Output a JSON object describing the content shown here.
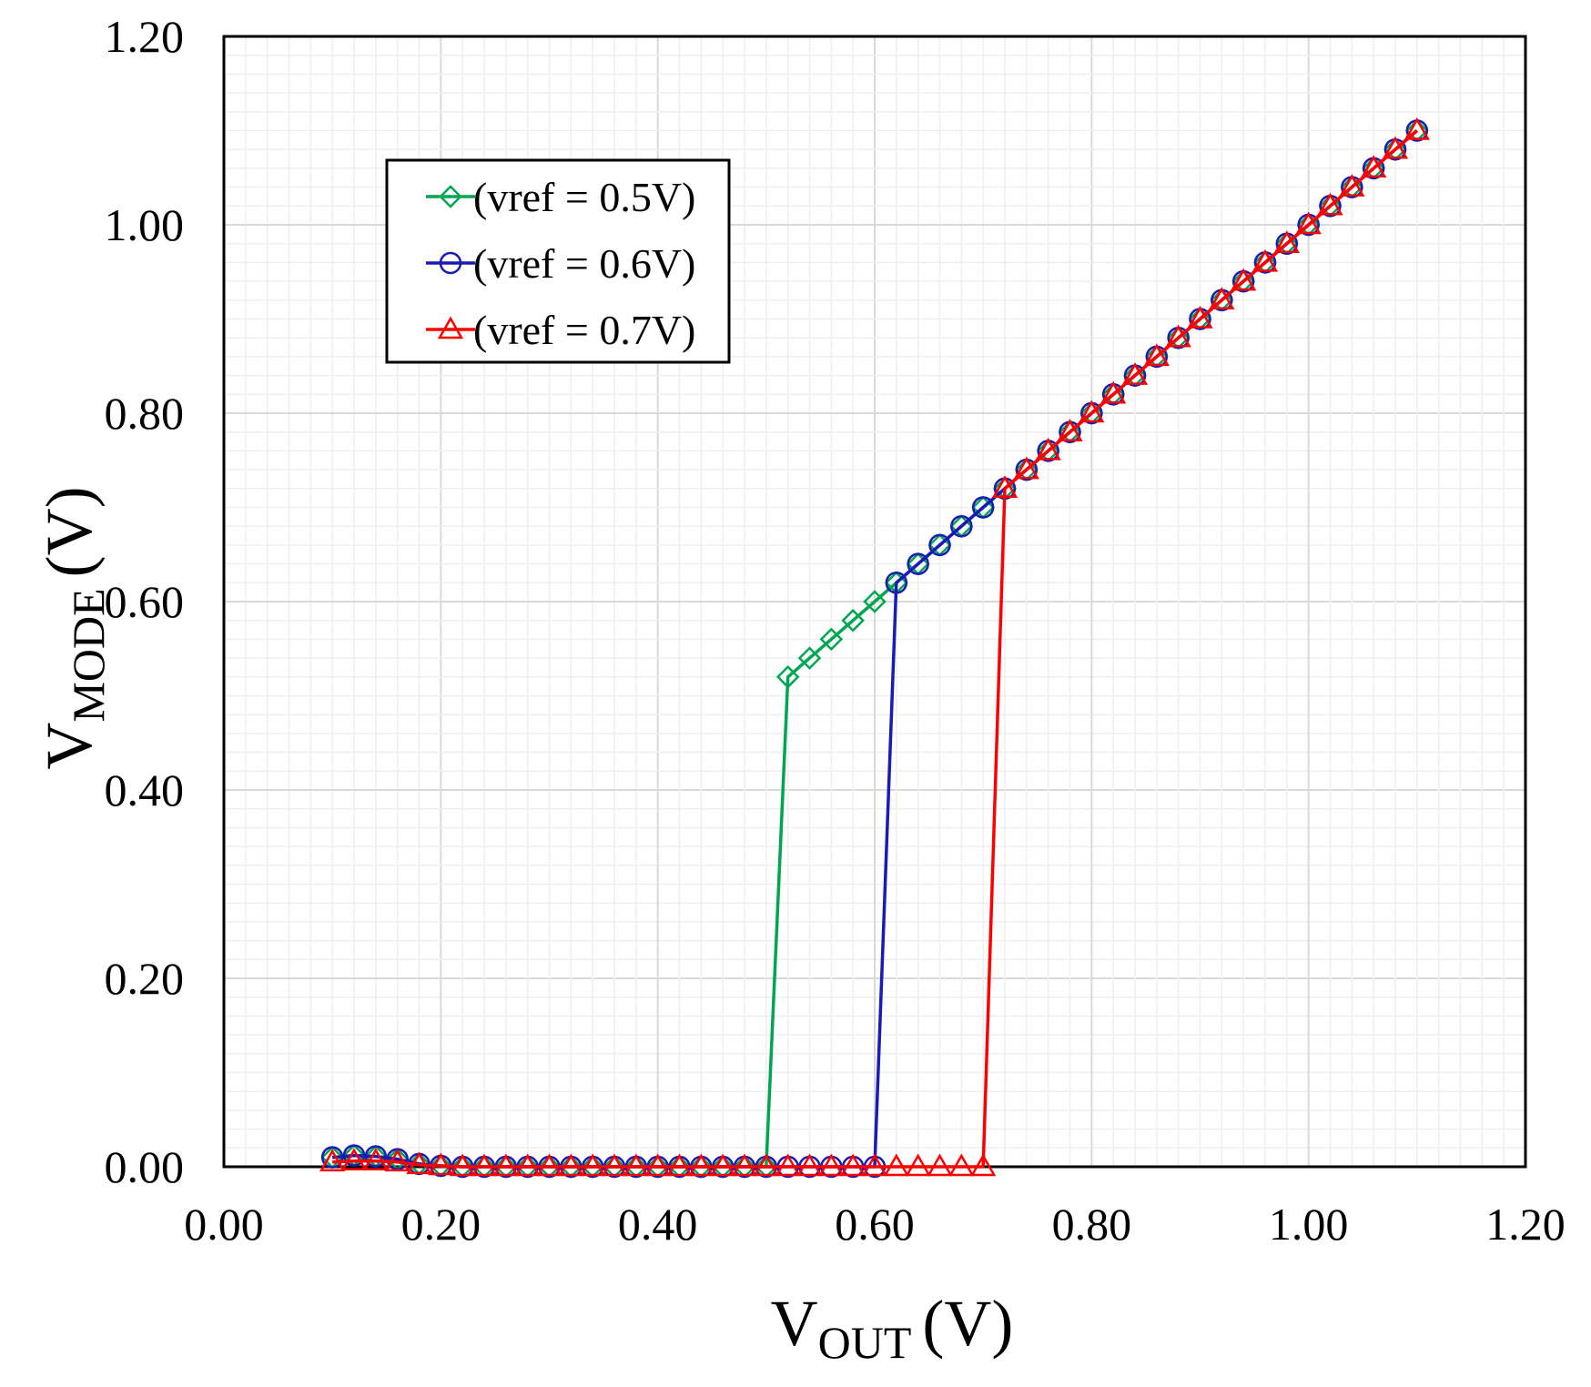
{
  "chart_data": {
    "type": "line",
    "title": "",
    "xlabel": {
      "main": "V",
      "subscript": "OUT",
      "unit": "(V)"
    },
    "ylabel": {
      "main": "V",
      "subscript": "MODE",
      "unit": "(V)"
    },
    "xlim": [
      0,
      1.2
    ],
    "ylim": [
      0,
      1.2
    ],
    "xticks": [
      "0.00",
      "0.20",
      "0.40",
      "0.60",
      "0.80",
      "1.00",
      "1.20"
    ],
    "yticks": [
      "0.00",
      "0.20",
      "0.40",
      "0.60",
      "0.80",
      "1.00",
      "1.20"
    ],
    "grid": true,
    "legend_position": "top-left",
    "series": [
      {
        "name": "(vref = 0.5V)",
        "color": "#00a651",
        "marker": "diamond",
        "x": [
          0.1,
          0.12,
          0.14,
          0.16,
          0.18,
          0.2,
          0.22,
          0.24,
          0.26,
          0.28,
          0.3,
          0.32,
          0.34,
          0.36,
          0.38,
          0.4,
          0.42,
          0.44,
          0.46,
          0.48,
          0.5,
          0.52,
          0.54,
          0.56,
          0.58,
          0.6,
          0.62,
          0.64,
          0.66,
          0.68,
          0.7,
          0.72,
          0.74,
          0.76,
          0.78,
          0.8,
          0.82,
          0.84,
          0.86,
          0.88,
          0.9,
          0.92,
          0.94,
          0.96,
          0.98,
          1.0,
          1.02,
          1.04,
          1.06,
          1.08,
          1.1
        ],
        "y": [
          0.01,
          0.012,
          0.011,
          0.008,
          0.003,
          0.001,
          0,
          0,
          0,
          0,
          0,
          0,
          0,
          0,
          0,
          0,
          0,
          0,
          0,
          0,
          0,
          0.52,
          0.54,
          0.56,
          0.58,
          0.6,
          0.62,
          0.64,
          0.66,
          0.68,
          0.7,
          0.72,
          0.74,
          0.76,
          0.78,
          0.8,
          0.82,
          0.84,
          0.86,
          0.88,
          0.9,
          0.92,
          0.94,
          0.96,
          0.98,
          1.0,
          1.02,
          1.04,
          1.06,
          1.08,
          1.1
        ]
      },
      {
        "name": "(vref = 0.6V)",
        "color": "#1a1ab4",
        "marker": "circle",
        "x": [
          0.1,
          0.12,
          0.14,
          0.16,
          0.18,
          0.2,
          0.22,
          0.24,
          0.26,
          0.28,
          0.3,
          0.32,
          0.34,
          0.36,
          0.38,
          0.4,
          0.42,
          0.44,
          0.46,
          0.48,
          0.5,
          0.52,
          0.54,
          0.56,
          0.58,
          0.6,
          0.62,
          0.64,
          0.66,
          0.68,
          0.7,
          0.72,
          0.74,
          0.76,
          0.78,
          0.8,
          0.82,
          0.84,
          0.86,
          0.88,
          0.9,
          0.92,
          0.94,
          0.96,
          0.98,
          1.0,
          1.02,
          1.04,
          1.06,
          1.08,
          1.1
        ],
        "y": [
          0.01,
          0.012,
          0.011,
          0.008,
          0.003,
          0.001,
          0,
          0,
          0,
          0,
          0,
          0,
          0,
          0,
          0,
          0,
          0,
          0,
          0,
          0,
          0,
          0,
          0,
          0,
          0,
          0,
          0.62,
          0.64,
          0.66,
          0.68,
          0.7,
          0.72,
          0.74,
          0.76,
          0.78,
          0.8,
          0.82,
          0.84,
          0.86,
          0.88,
          0.9,
          0.92,
          0.94,
          0.96,
          0.98,
          1.0,
          1.02,
          1.04,
          1.06,
          1.08,
          1.1
        ]
      },
      {
        "name": "(vref = 0.7V)",
        "color": "#ff0000",
        "marker": "triangle",
        "x": [
          0.1,
          0.12,
          0.14,
          0.16,
          0.18,
          0.2,
          0.22,
          0.24,
          0.26,
          0.28,
          0.3,
          0.32,
          0.34,
          0.36,
          0.38,
          0.4,
          0.42,
          0.44,
          0.46,
          0.48,
          0.5,
          0.52,
          0.54,
          0.56,
          0.58,
          0.6,
          0.62,
          0.64,
          0.66,
          0.68,
          0.7,
          0.72,
          0.74,
          0.76,
          0.78,
          0.8,
          0.82,
          0.84,
          0.86,
          0.88,
          0.9,
          0.92,
          0.94,
          0.96,
          0.98,
          1.0,
          1.02,
          1.04,
          1.06,
          1.08,
          1.1
        ],
        "y": [
          0.005,
          0.006,
          0.006,
          0.005,
          0.002,
          0.001,
          0,
          0,
          0,
          0,
          0,
          0,
          0,
          0,
          0,
          0,
          0,
          0,
          0,
          0,
          0,
          0,
          0,
          0,
          0,
          0,
          0,
          0,
          0,
          0,
          0,
          0.72,
          0.74,
          0.76,
          0.78,
          0.8,
          0.82,
          0.84,
          0.86,
          0.88,
          0.9,
          0.92,
          0.94,
          0.96,
          0.98,
          1.0,
          1.02,
          1.04,
          1.06,
          1.08,
          1.1
        ]
      }
    ]
  }
}
